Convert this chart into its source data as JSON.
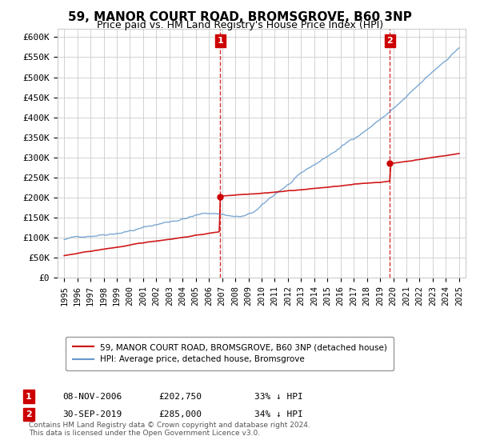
{
  "title": "59, MANOR COURT ROAD, BROMSGROVE, B60 3NP",
  "subtitle": "Price paid vs. HM Land Registry's House Price Index (HPI)",
  "legend_line1": "59, MANOR COURT ROAD, BROMSGROVE, B60 3NP (detached house)",
  "legend_line2": "HPI: Average price, detached house, Bromsgrove",
  "transaction1_label": "1",
  "transaction1_date": "08-NOV-2006",
  "transaction1_price": "£202,750",
  "transaction1_hpi": "33% ↓ HPI",
  "transaction1_year": 2006.86,
  "transaction2_label": "2",
  "transaction2_date": "30-SEP-2019",
  "transaction2_price": "£285,000",
  "transaction2_hpi": "34% ↓ HPI",
  "transaction2_year": 2019.75,
  "footer": "Contains HM Land Registry data © Crown copyright and database right 2024.\nThis data is licensed under the Open Government Licence v3.0.",
  "red_color": "#cc0000",
  "blue_color": "#6699cc",
  "vline_color": "#cc0000",
  "marker_box_color": "#cc0000",
  "ylim_min": 0,
  "ylim_max": 620000,
  "xlim_min": 1994.5,
  "xlim_max": 2025.5,
  "ytick_values": [
    0,
    50000,
    100000,
    150000,
    200000,
    250000,
    300000,
    350000,
    400000,
    450000,
    500000,
    550000,
    600000
  ],
  "ytick_labels": [
    "£0",
    "£50K",
    "£100K",
    "£150K",
    "£200K",
    "£250K",
    "£300K",
    "£350K",
    "£400K",
    "£450K",
    "£500K",
    "£550K",
    "£600K"
  ],
  "xtick_values": [
    1995,
    1996,
    1997,
    1998,
    1999,
    2000,
    2001,
    2002,
    2003,
    2004,
    2005,
    2006,
    2007,
    2008,
    2009,
    2010,
    2011,
    2012,
    2013,
    2014,
    2015,
    2016,
    2017,
    2018,
    2019,
    2020,
    2021,
    2022,
    2023,
    2024,
    2025
  ]
}
